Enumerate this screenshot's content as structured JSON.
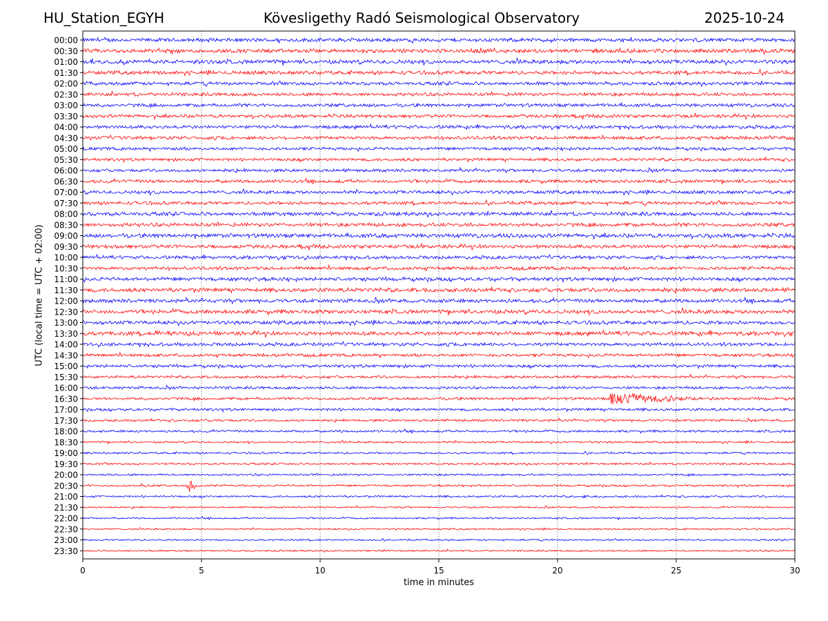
{
  "header": {
    "station": "HU_Station_EGYH",
    "observatory": "Kövesligethy Radó Seismological Observatory",
    "date": "2025-10-24"
  },
  "colors": {
    "trace_even": "#0000ff",
    "trace_odd": "#ff0000",
    "grid": "#000000"
  },
  "chart_data": {
    "type": "line",
    "ylabel": "UTC (local time = UTC + 02:00)",
    "xlabel": "time in minutes",
    "xlim": [
      0,
      30
    ],
    "xticks": [
      0,
      5,
      10,
      15,
      20,
      25,
      30
    ],
    "grid": "vertical dotted at each x tick",
    "rows": [
      "00:00",
      "00:30",
      "01:00",
      "01:30",
      "02:00",
      "02:30",
      "03:00",
      "03:30",
      "04:00",
      "04:30",
      "05:00",
      "05:30",
      "06:00",
      "06:30",
      "07:00",
      "07:30",
      "08:00",
      "08:30",
      "09:00",
      "09:30",
      "10:00",
      "10:30",
      "11:00",
      "11:30",
      "12:00",
      "12:30",
      "13:00",
      "13:30",
      "14:00",
      "14:30",
      "15:00",
      "15:30",
      "16:00",
      "16:30",
      "17:00",
      "17:30",
      "18:00",
      "18:30",
      "19:00",
      "19:30",
      "20:00",
      "20:30",
      "21:00",
      "21:30",
      "22:00",
      "22:30",
      "23:00",
      "23:30"
    ],
    "noise_level": [
      0.55,
      0.6,
      0.6,
      0.55,
      0.5,
      0.5,
      0.5,
      0.5,
      0.5,
      0.5,
      0.45,
      0.45,
      0.45,
      0.5,
      0.5,
      0.5,
      0.55,
      0.55,
      0.6,
      0.55,
      0.5,
      0.5,
      0.55,
      0.6,
      0.55,
      0.6,
      0.55,
      0.6,
      0.5,
      0.45,
      0.45,
      0.4,
      0.4,
      0.4,
      0.4,
      0.35,
      0.35,
      0.3,
      0.3,
      0.3,
      0.3,
      0.3,
      0.3,
      0.25,
      0.25,
      0.25,
      0.25,
      0.25
    ],
    "events": [
      {
        "row": "16:30",
        "onset_min": 22.2,
        "peak": 3.4,
        "decay_min": 1.6,
        "coda_min": 4.5
      },
      {
        "row": "20:30",
        "onset_min": 4.4,
        "peak": 3.0,
        "decay_min": 0.25,
        "coda_min": 1.5
      },
      {
        "row": "20:30",
        "onset_min": 2.45,
        "peak": 0.8,
        "decay_min": 0.15,
        "coda_min": 0.4
      },
      {
        "row": "13:30",
        "onset_min": 3.0,
        "peak": 0.6,
        "decay_min": 3.0,
        "coda_min": 3.0
      },
      {
        "row": "16:00",
        "onset_min": 4.4,
        "peak": 0.5,
        "decay_min": 0.2,
        "coda_min": 0.5
      },
      {
        "row": "14:00",
        "onset_min": 16.5,
        "peak": 0.6,
        "decay_min": 0.1,
        "coda_min": 0.3
      },
      {
        "row": "21:00",
        "onset_min": 21.0,
        "peak": 0.5,
        "decay_min": 0.3,
        "coda_min": 0.6
      }
    ]
  }
}
